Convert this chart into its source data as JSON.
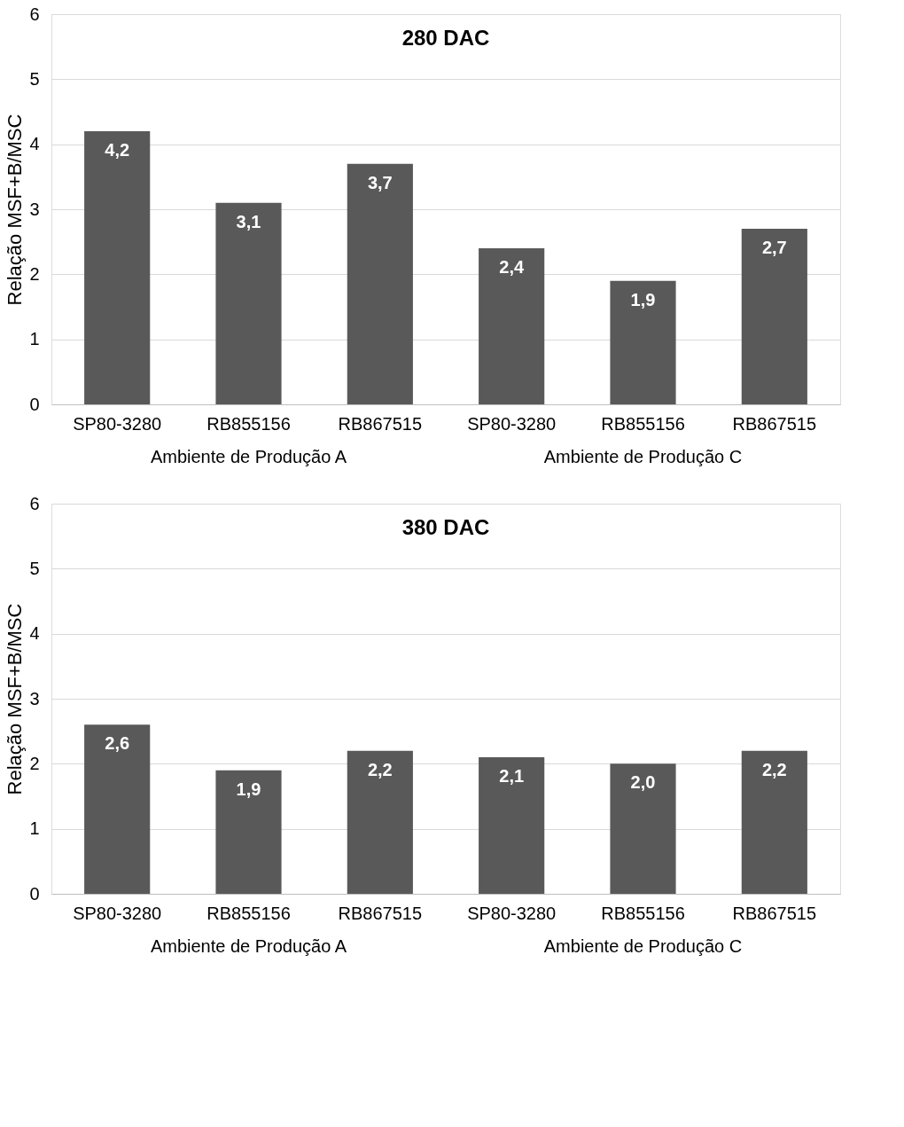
{
  "chart_data": [
    {
      "type": "bar",
      "title": "280 DAC",
      "ylabel": "Relação MSF+B/MSC",
      "categories": [
        "SP80-3280",
        "RB855156",
        "RB867515",
        "SP80-3280",
        "RB855156",
        "RB867515"
      ],
      "values": [
        4.2,
        3.1,
        3.7,
        2.4,
        1.9,
        2.7
      ],
      "value_labels": [
        "4,2",
        "3,1",
        "3,7",
        "2,4",
        "1,9",
        "2,7"
      ],
      "color": "#595959",
      "ylim": [
        0,
        6
      ],
      "yticks": [
        0,
        1,
        2,
        3,
        4,
        5,
        6
      ],
      "grid": "y",
      "annotations": [
        "Ambiente de Produção A",
        "Ambiente de Produção C"
      ]
    },
    {
      "type": "bar",
      "title": "380 DAC",
      "ylabel": "Relação MSF+B/MSC",
      "categories": [
        "SP80-3280",
        "RB855156",
        "RB867515",
        "SP80-3280",
        "RB855156",
        "RB867515"
      ],
      "values": [
        2.6,
        1.9,
        2.2,
        2.1,
        2.0,
        2.2
      ],
      "value_labels": [
        "2,6",
        "1,9",
        "2,2",
        "2,1",
        "2,0",
        "2,2"
      ],
      "color": "#595959",
      "ylim": [
        0,
        6
      ],
      "yticks": [
        0,
        1,
        2,
        3,
        4,
        5,
        6
      ],
      "grid": "y",
      "annotations": [
        "Ambiente de Produção A",
        "Ambiente de Produção C"
      ]
    }
  ]
}
